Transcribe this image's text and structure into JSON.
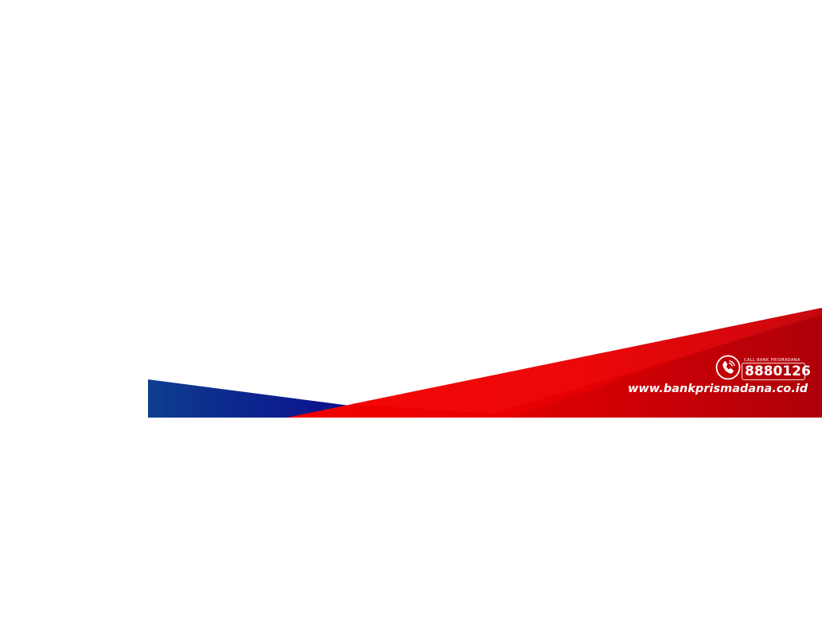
{
  "footer_banner": {
    "call_label": "CALL BANK PRISMADANA",
    "phone_number": "8880126",
    "website": "www.bankprismadana.co.id",
    "icon": "phone-icon"
  },
  "colors": {
    "background": "#ffffff",
    "blue_start": "#0e3a8f",
    "blue_end": "#0b0f8f",
    "red_bright": "#f10000",
    "red_dark": "#b40008",
    "text": "#ffffff"
  }
}
